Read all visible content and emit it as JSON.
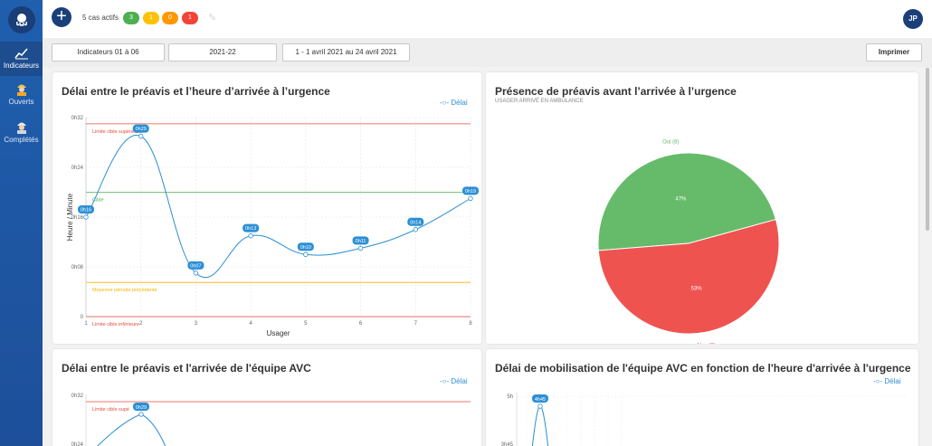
{
  "sidebar": {
    "items": [
      {
        "label": "Indicateurs",
        "icon": "chart-icon"
      },
      {
        "label": "Ouverts",
        "icon": "worker-icon"
      },
      {
        "label": "Complétés",
        "icon": "worker-done-icon"
      }
    ]
  },
  "topbar": {
    "cases_label": "5 cas actifs",
    "badges": [
      {
        "value": "3",
        "color": "#4caf50"
      },
      {
        "value": "1",
        "color": "#ffc107"
      },
      {
        "value": "0",
        "color": "#ff9800"
      },
      {
        "value": "1",
        "color": "#f44336"
      }
    ],
    "avatar": "JP"
  },
  "filters": {
    "indicators": "Indicateurs 01 à 06",
    "year": "2021-22",
    "period": "1 - 1 avril 2021 au 24 avril 2021",
    "print": "Imprimer"
  },
  "chart1": {
    "title": "Délai entre le préavis et l’heure d’arrivée à l’urgence",
    "legend": "Délai",
    "chart_data": {
      "type": "line",
      "xlabel": "Usager",
      "ylabel": "Heure / Minute",
      "x": [
        1,
        2,
        3,
        4,
        5,
        6,
        7,
        8
      ],
      "y_ticks": [
        "0",
        "0h08",
        "0h16",
        "0h24",
        "0h32"
      ],
      "ylim": [
        0,
        32
      ],
      "series": [
        {
          "name": "Délai",
          "values": [
            16,
            29,
            7,
            13,
            10,
            11,
            14,
            19
          ],
          "labels": [
            "0h16",
            "0h29",
            "0h07",
            "0h13",
            "0h10",
            "0h11",
            "0h14",
            "0h19"
          ]
        }
      ],
      "reference_lines": [
        {
          "label": "Limite cible supérieure",
          "y": 31,
          "color": "#e74c3c"
        },
        {
          "label": "Cible",
          "y": 20,
          "color": "#4caf50"
        },
        {
          "label": "Moyenne période précédente",
          "y": 5.5,
          "color": "#f5b400"
        },
        {
          "label": "Limite cible inférieure",
          "y": 0,
          "color": "#e74c3c"
        }
      ]
    }
  },
  "chart2": {
    "title": "Présence de préavis avant l’arrivée à l’urgence",
    "subtitle": "USAGER ARRIVÉ EN AMBULANCE",
    "chart_data": {
      "type": "pie",
      "categories": [
        "Oui (8)",
        "Non (9)"
      ],
      "values": [
        47,
        53
      ],
      "labels": [
        "47%",
        "53%"
      ],
      "colors": [
        "#66bb6a",
        "#ef5350"
      ]
    }
  },
  "chart3": {
    "title": "Délai entre le préavis et l'arrivée de l'équipe AVC",
    "legend": "Délai",
    "chart_data": {
      "type": "line",
      "y_ticks": [
        "0h32",
        "0h24"
      ],
      "series": [
        {
          "name": "Délai",
          "labels": [
            "0h29"
          ]
        }
      ],
      "reference_lines": [
        {
          "label": "Limite cible supé",
          "color": "#e74c3c"
        }
      ]
    }
  },
  "chart4": {
    "title": "Délai de mobilisation de l'équipe AVC en fonction de l'heure d'arrivée à l'urgence",
    "legend": "Délai",
    "chart_data": {
      "type": "line",
      "y_ticks": [
        "5h",
        "3h45"
      ],
      "series": [
        {
          "name": "Délai",
          "labels": [
            "4h45"
          ]
        }
      ]
    }
  }
}
